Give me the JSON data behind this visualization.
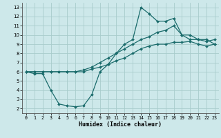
{
  "xlabel": "Humidex (Indice chaleur)",
  "bg_color": "#cde8ea",
  "grid_color": "#a8cccc",
  "line_color": "#1a6b6b",
  "xlim": [
    -0.5,
    23.5
  ],
  "ylim": [
    1.5,
    13.5
  ],
  "xticks": [
    0,
    1,
    2,
    3,
    4,
    5,
    6,
    7,
    8,
    9,
    10,
    11,
    12,
    13,
    14,
    15,
    16,
    17,
    18,
    19,
    20,
    21,
    22,
    23
  ],
  "yticks": [
    2,
    3,
    4,
    5,
    6,
    7,
    8,
    9,
    10,
    11,
    12,
    13
  ],
  "line1_x": [
    0,
    1,
    2,
    3,
    4,
    5,
    6,
    7,
    8,
    9,
    10,
    11,
    12,
    13,
    14,
    15,
    16,
    17,
    18,
    19,
    20,
    21,
    22,
    23
  ],
  "line1_y": [
    6.0,
    5.8,
    5.8,
    4.0,
    2.5,
    2.3,
    2.2,
    2.3,
    3.5,
    6.0,
    6.8,
    8.0,
    9.0,
    9.5,
    13.0,
    12.3,
    11.5,
    11.5,
    11.8,
    10.0,
    9.5,
    9.5,
    9.5,
    9.0
  ],
  "line2_x": [
    0,
    1,
    2,
    3,
    4,
    5,
    6,
    7,
    8,
    9,
    10,
    11,
    12,
    13,
    14,
    15,
    16,
    17,
    18,
    19,
    20,
    21,
    22,
    23
  ],
  "line2_y": [
    6.0,
    6.0,
    6.0,
    6.0,
    6.0,
    6.0,
    6.0,
    6.2,
    6.5,
    7.0,
    7.5,
    8.0,
    8.5,
    9.0,
    9.5,
    9.8,
    10.3,
    10.5,
    11.0,
    10.0,
    10.0,
    9.5,
    9.3,
    9.5
  ],
  "line3_x": [
    0,
    1,
    2,
    3,
    4,
    5,
    6,
    7,
    8,
    9,
    10,
    11,
    12,
    13,
    14,
    15,
    16,
    17,
    18,
    19,
    20,
    21,
    22,
    23
  ],
  "line3_y": [
    6.0,
    6.0,
    6.0,
    6.0,
    6.0,
    6.0,
    6.0,
    6.0,
    6.3,
    6.5,
    6.8,
    7.2,
    7.5,
    8.0,
    8.5,
    8.8,
    9.0,
    9.0,
    9.2,
    9.2,
    9.3,
    9.0,
    8.8,
    9.0
  ]
}
